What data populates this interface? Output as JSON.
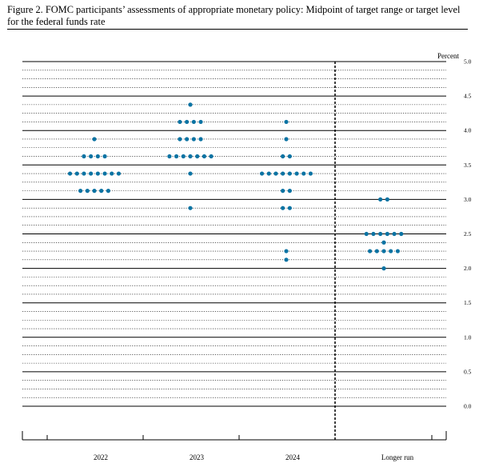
{
  "caption": "Figure 2.  FOMC participants’ assessments of appropriate monetary policy: Midpoint of target range or target level for the federal funds rate",
  "chart_data": {
    "type": "scatter",
    "style": "dot plot",
    "unit_label": "Percent",
    "ylim": [
      0,
      5.0
    ],
    "y_ticks": [
      "5.0",
      "4.5",
      "4.0",
      "3.5",
      "3.0",
      "2.5",
      "2.0",
      "1.5",
      "1.0",
      "0.5",
      "0.0"
    ],
    "categories": [
      "2022",
      "2023",
      "2024",
      "Longer run"
    ],
    "dot_color": "#0b73a3",
    "series": [
      {
        "values": [
          {
            "y": 3.875,
            "count": 1
          },
          {
            "y": 3.625,
            "count": 4
          },
          {
            "y": 3.375,
            "count": 8
          },
          {
            "y": 3.125,
            "count": 5
          }
        ]
      },
      {
        "values": [
          {
            "y": 4.375,
            "count": 1
          },
          {
            "y": 4.125,
            "count": 4
          },
          {
            "y": 3.875,
            "count": 4
          },
          {
            "y": 3.625,
            "count": 7
          },
          {
            "y": 3.375,
            "count": 1
          },
          {
            "y": 2.875,
            "count": 1
          }
        ]
      },
      {
        "values": [
          {
            "y": 4.125,
            "count": 1
          },
          {
            "y": 3.875,
            "count": 1
          },
          {
            "y": 3.625,
            "count": 2
          },
          {
            "y": 3.375,
            "count": 8
          },
          {
            "y": 3.125,
            "count": 2
          },
          {
            "y": 2.875,
            "count": 2
          },
          {
            "y": 2.25,
            "count": 1
          },
          {
            "y": 2.125,
            "count": 1
          }
        ]
      },
      {
        "values": [
          {
            "y": 3.0,
            "count": 2
          },
          {
            "y": 2.5,
            "count": 6
          },
          {
            "y": 2.375,
            "count": 1
          },
          {
            "y": 2.25,
            "count": 5
          },
          {
            "y": 2.0,
            "count": 1
          }
        ]
      }
    ]
  }
}
